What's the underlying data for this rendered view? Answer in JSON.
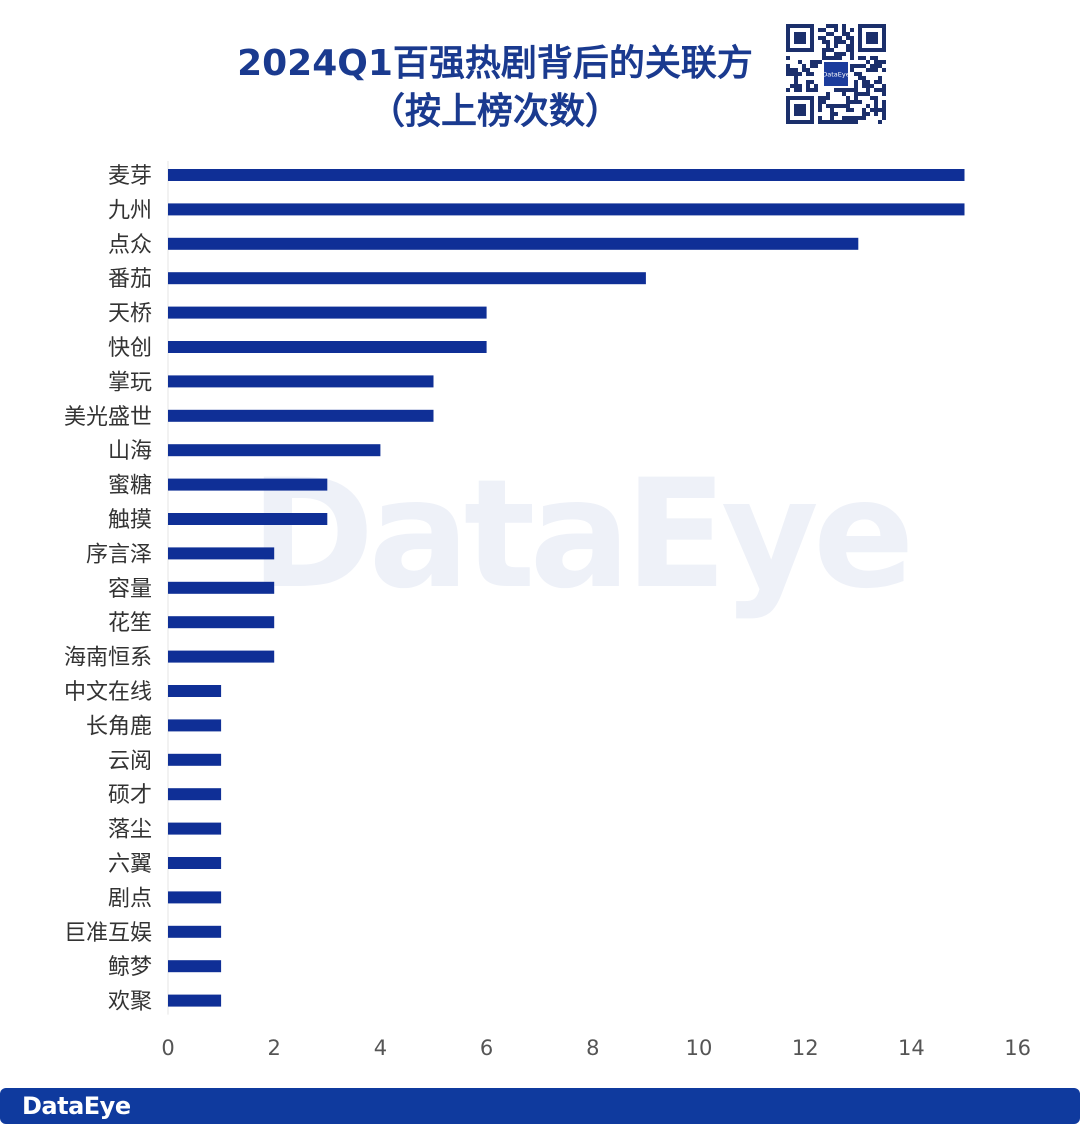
{
  "title": {
    "line1": "2024Q1百强热剧背后的关联方",
    "line2": "（按上榜次数）"
  },
  "qr_code": {
    "center_label": "DataEye"
  },
  "watermark": "DataEye",
  "footer": {
    "brand": "DataEye"
  },
  "colors": {
    "bar": "#0f2f96",
    "title": "#1a3a8f",
    "footer": "#0f3a9e",
    "axis_text": "#555555",
    "category_text": "#333333"
  },
  "chart_data": {
    "type": "bar",
    "orientation": "horizontal",
    "categories": [
      "麦芽",
      "九州",
      "点众",
      "番茄",
      "天桥",
      "快创",
      "掌玩",
      "美光盛世",
      "山海",
      "蜜糖",
      "触摸",
      "序言泽",
      "容量",
      "花笙",
      "海南恒系",
      "中文在线",
      "长角鹿",
      "云阅",
      "硕才",
      "落尘",
      "六翼",
      "剧点",
      "巨准互娱",
      "鲸梦",
      "欢聚"
    ],
    "values": [
      15,
      15,
      13,
      9,
      6,
      6,
      5,
      5,
      4,
      3,
      3,
      2,
      2,
      2,
      2,
      1,
      1,
      1,
      1,
      1,
      1,
      1,
      1,
      1,
      1
    ],
    "xlim": [
      0,
      16
    ],
    "xticks": [
      "0",
      "2",
      "4",
      "6",
      "8",
      "10",
      "12",
      "14",
      "16"
    ],
    "grid": false,
    "legend": "none"
  }
}
